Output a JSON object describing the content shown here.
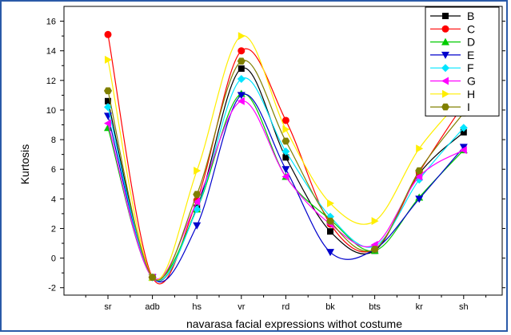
{
  "chart_data": {
    "type": "line",
    "title": "",
    "xlabel": "navarasa facial expressions withot costume",
    "ylabel": "Kurtosis",
    "categories": [
      "sr",
      "adb",
      "hs",
      "vr",
      "rd",
      "bk",
      "bts",
      "kr",
      "sh"
    ],
    "ylim": [
      -2.5,
      17
    ],
    "yticks": [
      -2,
      0,
      2,
      4,
      6,
      8,
      10,
      12,
      14,
      16
    ],
    "legend_position": "top-right",
    "series": [
      {
        "name": "B",
        "color": "#000000",
        "marker": "square",
        "values": [
          10.6,
          -1.3,
          3.4,
          12.8,
          6.8,
          1.8,
          0.5,
          5.7,
          8.5
        ]
      },
      {
        "name": "C",
        "color": "#ff0000",
        "marker": "circle",
        "values": [
          15.1,
          -1.3,
          3.9,
          14.0,
          9.3,
          2.3,
          0.6,
          5.8,
          10.4
        ]
      },
      {
        "name": "D",
        "color": "#00cc00",
        "marker": "triangle-up",
        "values": [
          8.8,
          -1.3,
          3.3,
          11.1,
          5.5,
          2.6,
          0.5,
          4.1,
          7.3
        ]
      },
      {
        "name": "E",
        "color": "#0000cc",
        "marker": "triangle-down",
        "values": [
          9.6,
          -1.3,
          2.2,
          11.0,
          6.0,
          0.4,
          0.6,
          4.0,
          7.5
        ]
      },
      {
        "name": "F",
        "color": "#00e5ff",
        "marker": "diamond",
        "values": [
          10.2,
          -1.3,
          3.3,
          12.1,
          7.2,
          2.8,
          0.8,
          5.3,
          8.8
        ]
      },
      {
        "name": "G",
        "color": "#ff00ff",
        "marker": "triangle-left",
        "values": [
          9.1,
          -1.3,
          3.8,
          10.6,
          5.5,
          2.3,
          0.9,
          5.5,
          7.3
        ]
      },
      {
        "name": "H",
        "color": "#ffee00",
        "marker": "triangle-right",
        "values": [
          13.4,
          -1.3,
          5.9,
          15.0,
          8.7,
          3.7,
          2.5,
          7.4,
          10.9
        ]
      },
      {
        "name": "I",
        "color": "#808000",
        "marker": "hexagon",
        "values": [
          11.3,
          -1.3,
          4.3,
          13.3,
          7.9,
          2.5,
          0.6,
          5.9,
          9.8
        ]
      }
    ]
  }
}
